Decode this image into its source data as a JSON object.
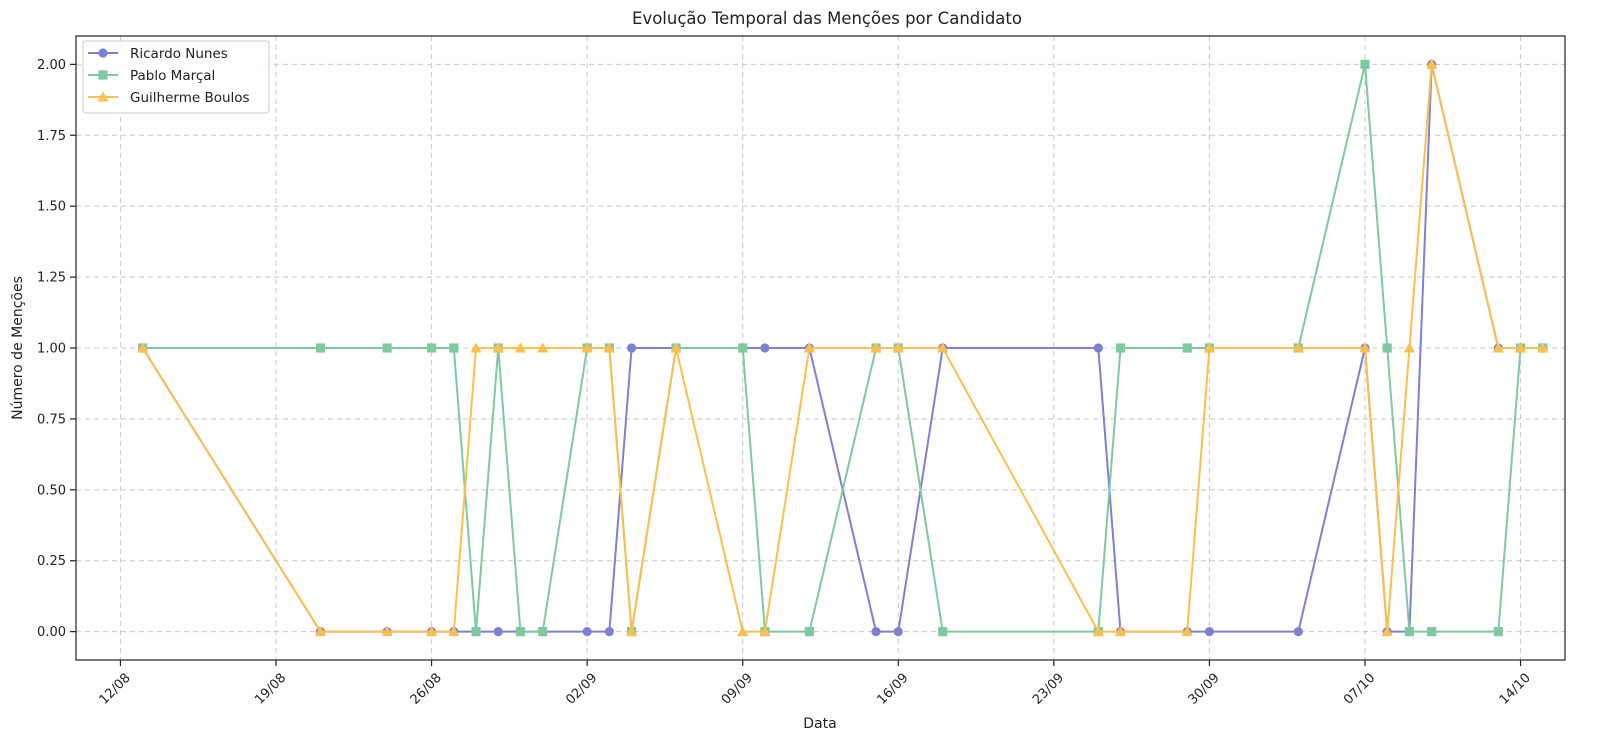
{
  "chart_data": {
    "type": "line",
    "title": "Evolução Temporal das Menções por Candidato",
    "xlabel": "Data",
    "ylabel": "Número de Menções",
    "x_ticks": [
      {
        "date": "2024-08-12",
        "label": "12/08"
      },
      {
        "date": "2024-08-19",
        "label": "19/08"
      },
      {
        "date": "2024-08-26",
        "label": "26/08"
      },
      {
        "date": "2024-09-02",
        "label": "02/09"
      },
      {
        "date": "2024-09-09",
        "label": "09/09"
      },
      {
        "date": "2024-09-16",
        "label": "16/09"
      },
      {
        "date": "2024-09-23",
        "label": "23/09"
      },
      {
        "date": "2024-09-30",
        "label": "30/09"
      },
      {
        "date": "2024-10-07",
        "label": "07/10"
      },
      {
        "date": "2024-10-14",
        "label": "14/10"
      }
    ],
    "y_ticks": [
      "0.00",
      "0.25",
      "0.50",
      "0.75",
      "1.00",
      "1.25",
      "1.50",
      "1.75",
      "2.00"
    ],
    "xlim": [
      "2024-08-10",
      "2024-10-16"
    ],
    "ylim": [
      -0.1,
      2.1
    ],
    "grid": true,
    "legend_position": "top-left",
    "x": [
      "2024-08-13",
      "2024-08-21",
      "2024-08-24",
      "2024-08-26",
      "2024-08-27",
      "2024-08-28",
      "2024-08-29",
      "2024-08-30",
      "2024-08-31",
      "2024-09-02",
      "2024-09-03",
      "2024-09-04",
      "2024-09-06",
      "2024-09-09",
      "2024-09-10",
      "2024-09-12",
      "2024-09-15",
      "2024-09-16",
      "2024-09-18",
      "2024-09-25",
      "2024-09-26",
      "2024-09-29",
      "2024-09-30",
      "2024-10-04",
      "2024-10-07",
      "2024-10-08",
      "2024-10-09",
      "2024-10-10",
      "2024-10-13",
      "2024-10-14",
      "2024-10-15"
    ],
    "series": [
      {
        "name": "Ricardo Nunes",
        "color": "#8080d0",
        "marker": "circle",
        "values": [
          1,
          0,
          0,
          0,
          0,
          0,
          0,
          0,
          0,
          0,
          0,
          1,
          1,
          1,
          1,
          1,
          0,
          0,
          1,
          1,
          0,
          0,
          0,
          0,
          1,
          0,
          0,
          2,
          1,
          1,
          1
        ]
      },
      {
        "name": "Pablo Marçal",
        "color": "#80c8a0",
        "marker": "square",
        "values": [
          1,
          1,
          1,
          1,
          1,
          0,
          1,
          0,
          0,
          1,
          1,
          0,
          1,
          1,
          0,
          0,
          1,
          1,
          0,
          0,
          1,
          1,
          1,
          1,
          2,
          1,
          0,
          0,
          0,
          1,
          1
        ]
      },
      {
        "name": "Guilherme Boulos",
        "color": "#f8c050",
        "marker": "triangle",
        "values": [
          1,
          0,
          0,
          0,
          0,
          1,
          1,
          1,
          1,
          1,
          1,
          0,
          1,
          0,
          0,
          1,
          1,
          1,
          1,
          0,
          0,
          0,
          1,
          1,
          1,
          0,
          1,
          2,
          1,
          1,
          1
        ]
      }
    ]
  }
}
